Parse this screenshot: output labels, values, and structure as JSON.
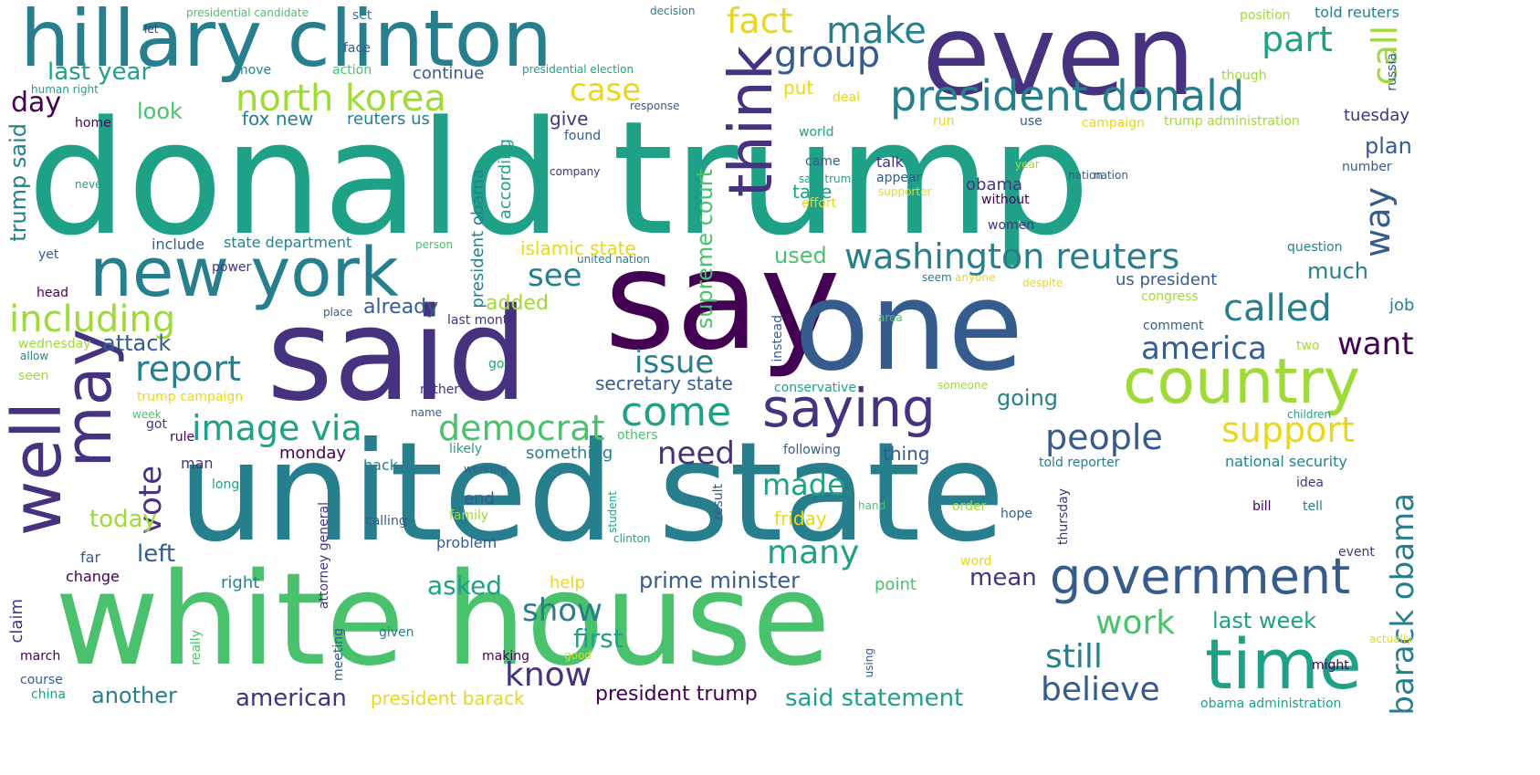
{
  "words": [
    "donald trump",
    "said",
    "say",
    "one",
    "united state",
    "white house",
    "even",
    "hillary clinton",
    "new york",
    "may",
    "well",
    "think",
    "time",
    "country",
    "saying",
    "government",
    "president donald",
    "washington reuters",
    "including",
    "image via",
    "democrat",
    "come",
    "north korea",
    "report",
    "make",
    "group",
    "fact",
    "case",
    "part",
    "call",
    "way",
    "barack obama",
    "support",
    "people",
    "called",
    "america",
    "want",
    "show",
    "know",
    "work",
    "still",
    "believe",
    "many",
    "made",
    "need",
    "issue",
    "see",
    "vote",
    "left",
    "today",
    "asked",
    "first",
    "another",
    "american",
    "president trump",
    "said statement",
    "prime minister",
    "mean",
    "last week",
    "president barack",
    "supreme court",
    "islamic state",
    "secretary state",
    "trump said",
    "last year",
    "day",
    "look",
    "attack",
    "added",
    "already",
    "used",
    "going",
    "much",
    "plan",
    "us president",
    "obama",
    "take",
    "put",
    "give",
    "according",
    "president obama",
    "continue",
    "fox new",
    "reuters us",
    "state department",
    "include",
    "monday",
    "friday",
    "end",
    "something",
    "thing",
    "national security",
    "told reporter",
    "tuesday",
    "job",
    "told reuters",
    "position",
    "russia",
    "though",
    "trump administration",
    "campaign",
    "use",
    "run",
    "world",
    "came",
    "talk",
    "appear",
    "year",
    "nation",
    "number",
    "said trump",
    "supporter",
    "effort",
    "without",
    "women",
    "question",
    "seem",
    "anyone",
    "despite",
    "congress",
    "comment",
    "two",
    "instead",
    "area",
    "conservative",
    "someone",
    "following",
    "children",
    "idea",
    "bill",
    "tell",
    "order",
    "hope",
    "thursday",
    "student",
    "result",
    "hand",
    "word",
    "point",
    "help",
    "event",
    "might",
    "actually",
    "obama administration",
    "good",
    "making",
    "using",
    "clinton",
    "family",
    "working",
    "back",
    "likely",
    "others",
    "problem",
    "calling",
    "claim",
    "change",
    "far",
    "right",
    "given",
    "meeting",
    "attorney general",
    "really",
    "march",
    "course",
    "china",
    "long",
    "man",
    "rule",
    "got",
    "week",
    "name",
    "rather",
    "go",
    "trump campaign",
    "seen",
    "allow",
    "wednesday",
    "head",
    "yet",
    "power",
    "place",
    "last month",
    "person",
    "united nation",
    "never",
    "home",
    "human right",
    "let",
    "presidential candidate",
    "set",
    "face",
    "move",
    "action",
    "presidential election",
    "decision",
    "response",
    "found",
    "company",
    "deal",
    "nation"
  ]
}
